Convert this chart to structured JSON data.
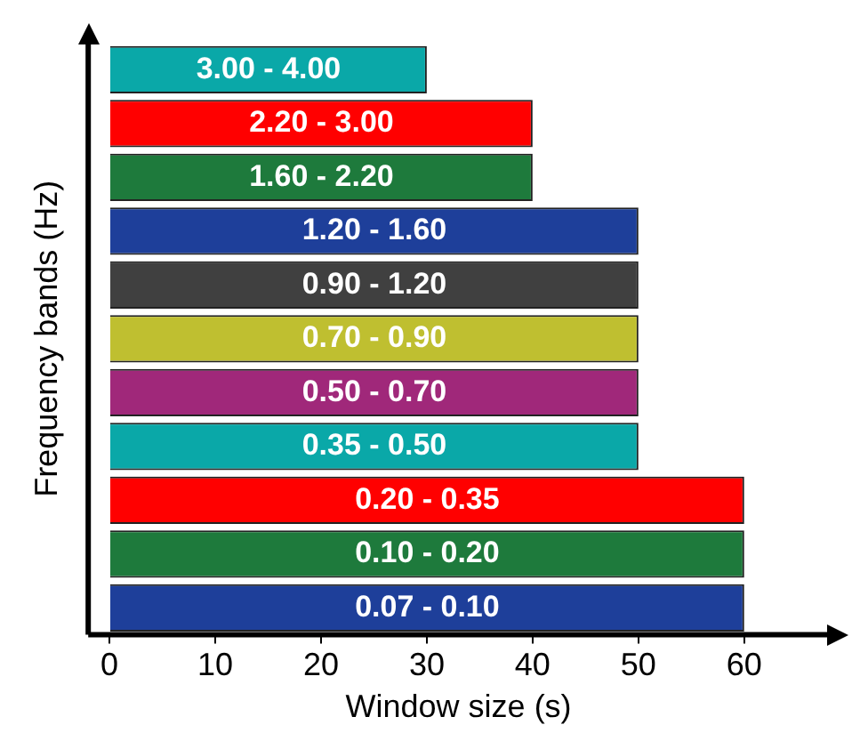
{
  "chart_data": {
    "type": "bar",
    "orientation": "horizontal",
    "xlabel": "Window size (s)",
    "ylabel": "Frequency bands (Hz)",
    "categories": [
      "3.00 - 4.00",
      "2.20 - 3.00",
      "1.60 - 2.20",
      "1.20 - 1.60",
      "0.90 - 1.20",
      "0.70 - 0.90",
      "0.50 - 0.70",
      "0.35 - 0.50",
      "0.20 - 0.35",
      "0.10 - 0.20",
      "0.07 - 0.10"
    ],
    "values": [
      30,
      40,
      40,
      50,
      50,
      50,
      50,
      50,
      60,
      60,
      60
    ],
    "colors": [
      "#0aa8a8",
      "#ff0000",
      "#1e7a3c",
      "#1e3f9a",
      "#404040",
      "#bfbf30",
      "#a0287a",
      "#0aa8a8",
      "#ff0000",
      "#1e7a3c",
      "#1e3f9a"
    ],
    "xlim": [
      -2,
      68
    ],
    "xticks": [
      0,
      10,
      20,
      30,
      40,
      50,
      60
    ],
    "grid": false,
    "legend": false,
    "tick_labels": "x"
  }
}
